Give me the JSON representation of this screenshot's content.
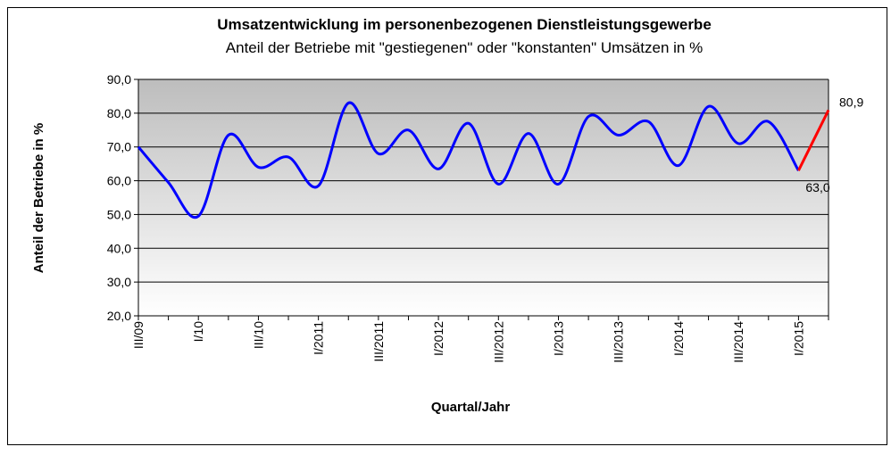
{
  "chart_data": {
    "type": "line",
    "title": "Umsatzentwicklung im personenbezogenen Dienstleistungsgewerbe",
    "subtitle": "Anteil der Betriebe mit \"gestiegenen\" oder \"konstanten\" Umsätzen in %",
    "x_label": "Quartal/Jahr",
    "y_label": "Anteil der Betriebe in %",
    "categories": [
      "III/09",
      null,
      "I/10",
      null,
      "III/10",
      null,
      "I/2011",
      null,
      "III/2011",
      null,
      "I/2012",
      null,
      "III/2012",
      null,
      "I/2013",
      null,
      "III/2013",
      null,
      "I/2014",
      null,
      "III/2014",
      null,
      "I/2015",
      null
    ],
    "series": [
      {
        "color": "#0000ff",
        "values": [
          70,
          59.5,
          49.5,
          73.5,
          64,
          67,
          58.5,
          83,
          68,
          75,
          63.5,
          77,
          59,
          74,
          59,
          79,
          73.5,
          77.5,
          64.5,
          82,
          71,
          77.5,
          63,
          null
        ]
      },
      {
        "color": "#ff0000",
        "values": [
          null,
          null,
          null,
          null,
          null,
          null,
          null,
          null,
          null,
          null,
          null,
          null,
          null,
          null,
          null,
          null,
          null,
          null,
          null,
          null,
          null,
          null,
          63.0,
          80.9
        ],
        "value_labels": [
          null,
          null,
          null,
          null,
          null,
          null,
          null,
          null,
          null,
          null,
          null,
          null,
          null,
          null,
          null,
          null,
          null,
          null,
          null,
          null,
          null,
          null,
          "63,0",
          "80,9"
        ]
      }
    ],
    "ylim": [
      20,
      90
    ],
    "yticks": [
      {
        "value": 20,
        "label": "20,0"
      },
      {
        "value": 30,
        "label": "30,0"
      },
      {
        "value": 40,
        "label": "40,0"
      },
      {
        "value": 50,
        "label": "50,0"
      },
      {
        "value": 60,
        "label": "60,0"
      },
      {
        "value": 70,
        "label": "70,0"
      },
      {
        "value": 80,
        "label": "80,0"
      },
      {
        "value": 90,
        "label": "90,0"
      }
    ],
    "grid": true
  }
}
